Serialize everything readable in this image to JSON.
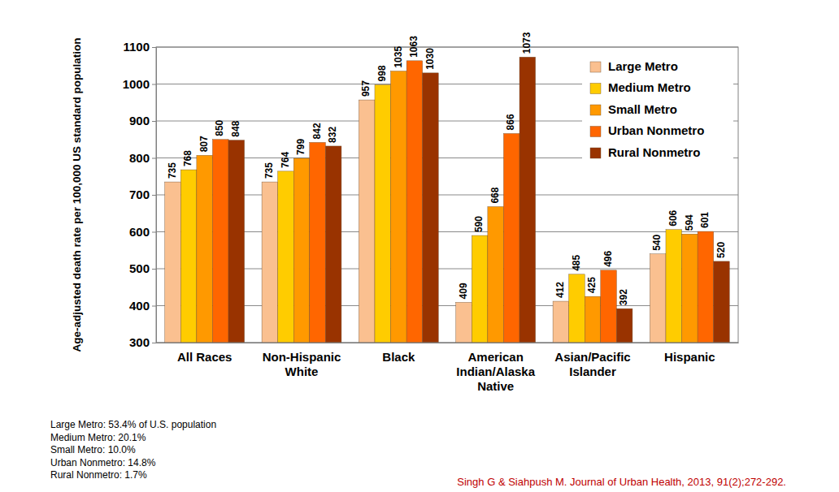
{
  "chart_data": {
    "type": "bar",
    "y_label": "Age-adjusted death rate per 100,000 US standard population",
    "categories": [
      "All Races",
      "Non-Hispanic White",
      "Black",
      "American Indian/Alaska Native",
      "Asian/Pacific Islander",
      "Hispanic"
    ],
    "series": [
      {
        "name": "Large Metro",
        "color": "#fac090",
        "values": [
          735,
          735,
          957,
          409,
          412,
          540
        ]
      },
      {
        "name": "Medium Metro",
        "color": "#ffcc00",
        "values": [
          768,
          764,
          998,
          590,
          485,
          606
        ]
      },
      {
        "name": "Small Metro",
        "color": "#ff9900",
        "values": [
          807,
          799,
          1035,
          668,
          425,
          594
        ]
      },
      {
        "name": "Urban Nonmetro",
        "color": "#ff6600",
        "values": [
          850,
          842,
          1063,
          866,
          496,
          601
        ]
      },
      {
        "name": "Rural Nonmetro",
        "color": "#993300",
        "values": [
          848,
          832,
          1030,
          1073,
          392,
          520
        ]
      }
    ],
    "ylim": [
      300,
      1100
    ],
    "yticks": [
      300,
      400,
      500,
      600,
      700,
      800,
      900,
      1000,
      1100
    ],
    "grid": true,
    "legend": "upper right",
    "data_labels": true,
    "annotations": [
      "Large Metro: 53.4% of U.S. population",
      "Medium Metro: 20.1%",
      "Small Metro: 10.0%",
      "Urban Nonmetro: 14.8%",
      "Rural Nonmetro: 1.7%"
    ],
    "source": "Singh G & Siahpush M. Journal of Urban Health, 2013, 91(2);272-292."
  }
}
